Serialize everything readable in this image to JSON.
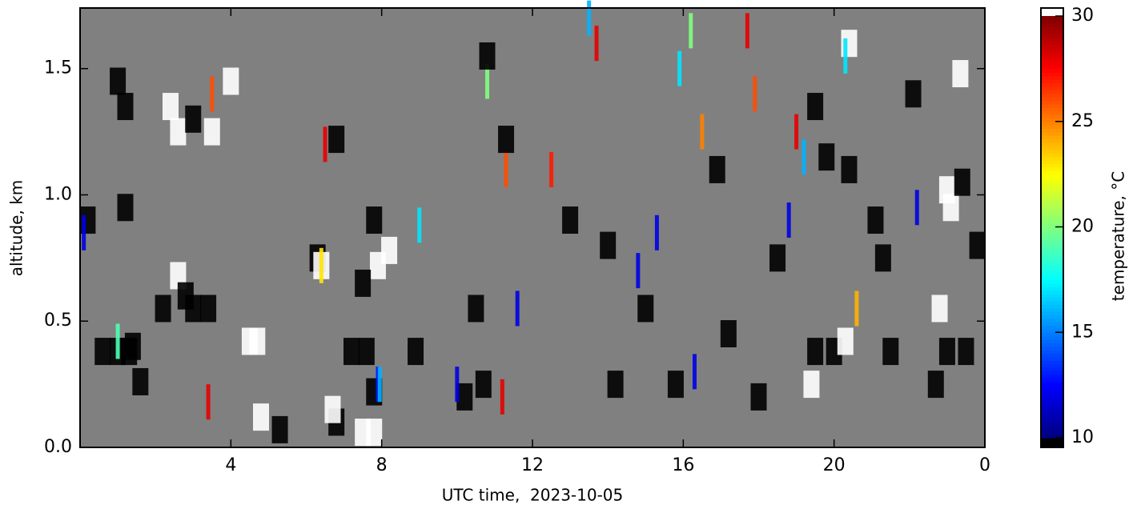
{
  "chart_data": {
    "type": "heatmap",
    "x_label": "UTC time,  2023-10-05",
    "y_label": "altitude, km",
    "colorbar_label": "temperature, °C",
    "background": "#808080",
    "xlim": [
      0,
      24
    ],
    "xticks": [
      4,
      8,
      12,
      16,
      20,
      {
        "value": 24,
        "label": "0"
      }
    ],
    "ylim": [
      0,
      1.74
    ],
    "yticks": [
      {
        "value": 0,
        "label": "0.0"
      },
      0.5,
      {
        "value": 1,
        "label": "1.0"
      },
      1.5
    ],
    "clim": [
      10,
      30
    ],
    "cticks": [
      10,
      15,
      20,
      25,
      30
    ],
    "colormap": "jet",
    "x": [
      1.0,
      1.2,
      2.4,
      2.6,
      3.5,
      4.0,
      3.0,
      3.5,
      0.2,
      1.2,
      2.6,
      2.8,
      2.2,
      3.0,
      3.4,
      0.6,
      1.0,
      1.3,
      1.4,
      1.0,
      1.6,
      3.4,
      4.5,
      4.7,
      5.3,
      4.8,
      6.3,
      6.4,
      6.4,
      6.8,
      6.5,
      6.8,
      6.7,
      7.5,
      7.8,
      7.2,
      7.6,
      7.8,
      8.2,
      7.9,
      7.8,
      7.5,
      8.9,
      9.0,
      7.9,
      7.95,
      10.5,
      10.2,
      10.7,
      10.0,
      11.2,
      11.3,
      11.3,
      11.6,
      10.8,
      10.8,
      12.5,
      13.5,
      13.7,
      13.0,
      14.0,
      15.0,
      14.8,
      14.2,
      15.8,
      16.3,
      15.9,
      16.2,
      15.3,
      16.9,
      16.5,
      17.2,
      18.0,
      18.5,
      17.9,
      17.7,
      19.0,
      19.2,
      18.8,
      19.4,
      19.5,
      20.0,
      20.3,
      20.4,
      20.3,
      19.5,
      19.8,
      20.4,
      20.6,
      21.3,
      21.1,
      23.35,
      22.1,
      23.0,
      23.1,
      23.4,
      23.0,
      23.5,
      22.7,
      22.8,
      22.2,
      21.5,
      0.1,
      23.8
    ],
    "y": [
      1.45,
      1.35,
      1.35,
      1.25,
      1.25,
      1.45,
      1.3,
      1.4,
      0.9,
      0.95,
      0.68,
      0.6,
      0.55,
      0.55,
      0.55,
      0.38,
      0.38,
      0.38,
      0.4,
      0.42,
      0.26,
      0.18,
      0.42,
      0.42,
      0.07,
      0.12,
      0.75,
      0.72,
      0.72,
      1.22,
      1.2,
      0.1,
      0.15,
      0.06,
      0.06,
      0.38,
      0.38,
      0.22,
      0.78,
      0.72,
      0.9,
      0.65,
      0.38,
      0.88,
      0.25,
      0.25,
      0.55,
      0.2,
      0.25,
      0.25,
      0.2,
      1.1,
      1.22,
      0.55,
      1.45,
      1.55,
      1.1,
      1.7,
      1.6,
      0.9,
      0.8,
      0.55,
      0.7,
      0.25,
      0.25,
      0.3,
      1.5,
      1.65,
      0.85,
      1.1,
      1.25,
      0.45,
      0.2,
      0.75,
      1.4,
      1.65,
      1.25,
      1.15,
      0.9,
      0.25,
      0.38,
      0.38,
      0.42,
      1.6,
      1.55,
      1.35,
      1.15,
      1.1,
      0.55,
      0.75,
      0.9,
      1.48,
      1.4,
      1.02,
      0.95,
      1.05,
      0.38,
      0.38,
      0.25,
      0.55,
      0.95,
      0.38,
      0.85,
      0.8
    ],
    "values": [
      5,
      5,
      35,
      35,
      35,
      35,
      5,
      26,
      5,
      5,
      35,
      5,
      5,
      5,
      5,
      5,
      5,
      5,
      5,
      19,
      5,
      28,
      35,
      35,
      5,
      35,
      5,
      35,
      23,
      5,
      28,
      5,
      35,
      35,
      35,
      5,
      5,
      5,
      35,
      35,
      5,
      5,
      5,
      17,
      13,
      16,
      5,
      5,
      5,
      12,
      28,
      26,
      5,
      12,
      20,
      5,
      27,
      16,
      28,
      5,
      5,
      5,
      12,
      5,
      5,
      12,
      17,
      20,
      12,
      5,
      25,
      5,
      5,
      5,
      26,
      28,
      28,
      16,
      12,
      35,
      5,
      5,
      35,
      35,
      17,
      5,
      5,
      5,
      24,
      5,
      5,
      35,
      5,
      35,
      35,
      5,
      5,
      5,
      5,
      35,
      12,
      5,
      12,
      5
    ]
  }
}
